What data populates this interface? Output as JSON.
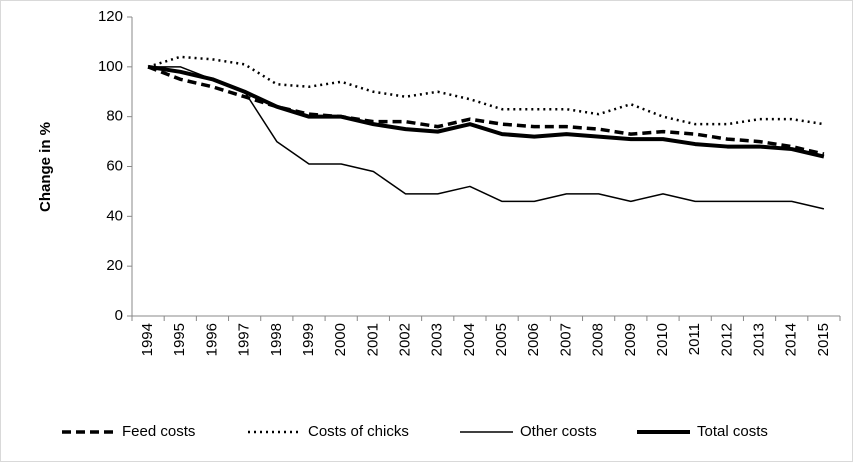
{
  "chart_data": {
    "type": "line",
    "y_label": "Change in %",
    "categories": [
      "1994",
      "1995",
      "1996",
      "1997",
      "1998",
      "1999",
      "2000",
      "2001",
      "2002",
      "2003",
      "2004",
      "2005",
      "2006",
      "2007",
      "2008",
      "2009",
      "2010",
      "2011",
      "2012",
      "2013",
      "2014",
      "2015"
    ],
    "series": [
      {
        "name": "Feed costs",
        "color": "#000000",
        "dash": "9,5",
        "width": 3.5,
        "values": [
          100,
          95,
          92,
          88,
          84,
          81,
          80,
          78,
          78,
          76,
          79,
          77,
          76,
          76,
          75,
          73,
          74,
          73,
          71,
          70,
          68,
          65
        ]
      },
      {
        "name": "Costs of chicks",
        "color": "#000000",
        "dash": "2,4",
        "width": 2.5,
        "values": [
          100,
          104,
          103,
          101,
          93,
          92,
          94,
          90,
          88,
          90,
          87,
          83,
          83,
          83,
          81,
          85,
          80,
          77,
          77,
          79,
          79,
          77
        ]
      },
      {
        "name": "Other costs",
        "color": "#000000",
        "dash": "none",
        "width": 1.5,
        "values": [
          100,
          100,
          95,
          90,
          70,
          61,
          61,
          58,
          49,
          49,
          52,
          46,
          46,
          49,
          49,
          46,
          49,
          46,
          46,
          46,
          46,
          43
        ]
      },
      {
        "name": "Total costs",
        "color": "#000000",
        "dash": "none",
        "width": 4,
        "values": [
          100,
          98,
          95,
          90,
          84,
          80,
          80,
          77,
          75,
          74,
          77,
          73,
          72,
          73,
          72,
          71,
          71,
          69,
          68,
          68,
          67,
          64
        ]
      }
    ],
    "ylim": [
      0,
      120
    ],
    "yticks": [
      0,
      20,
      40,
      60,
      80,
      100,
      120
    ],
    "legend": "bottom"
  }
}
